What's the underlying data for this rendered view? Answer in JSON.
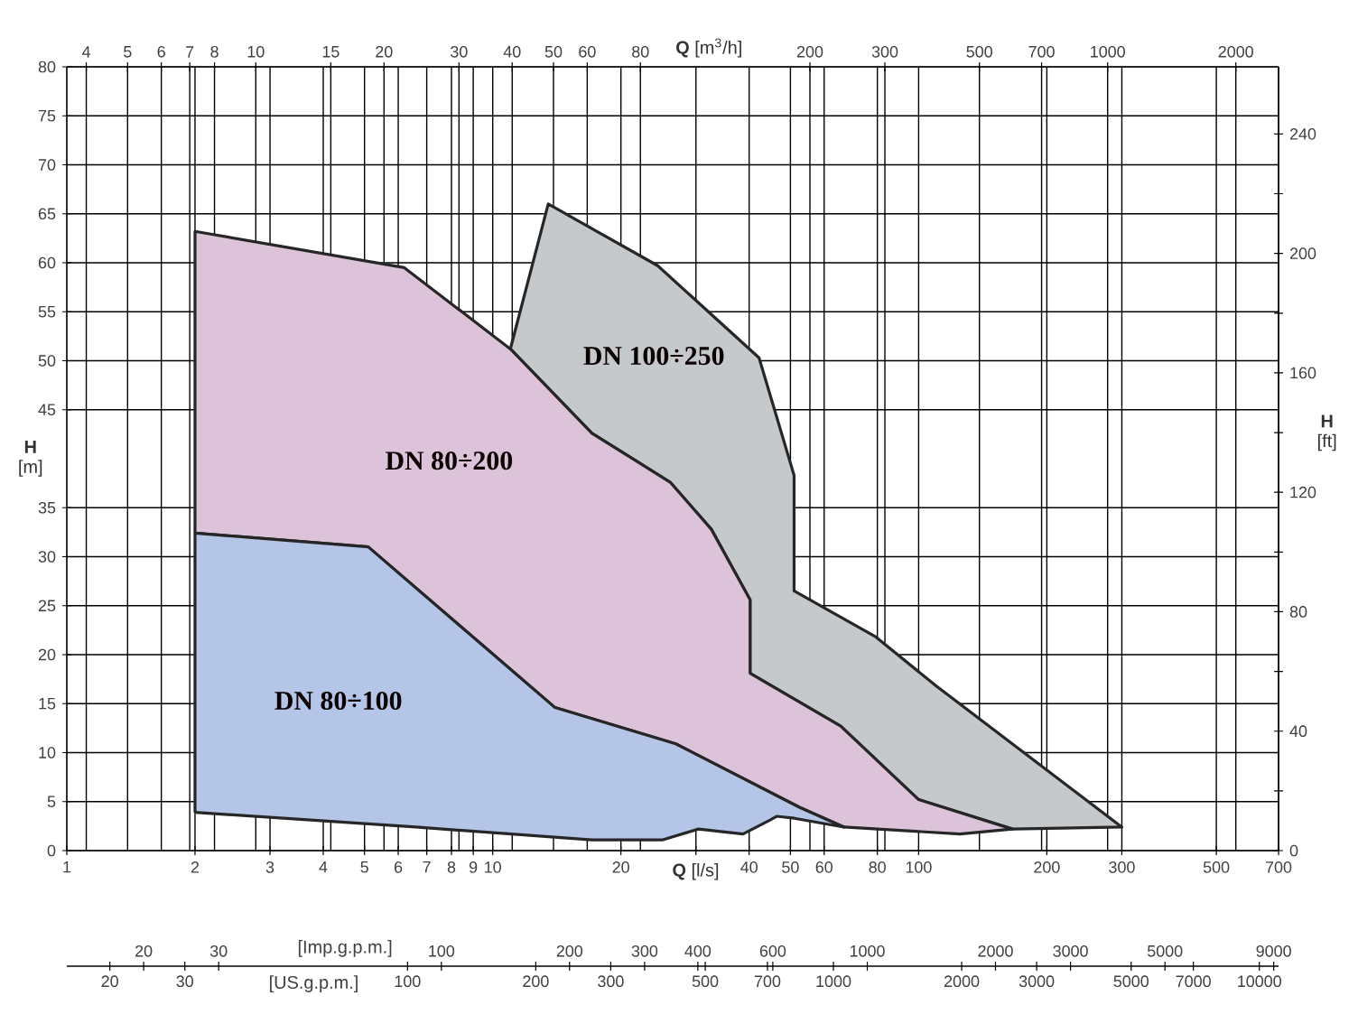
{
  "chart_data": {
    "type": "area",
    "xlabel": "**Q** [l/s]",
    "x2label": "**Q** [m$^{3}$/h]",
    "ylabel": "**H** [m]",
    "y2label": "**H** [ft]",
    "log": "x",
    "grid": true,
    "xlim": [
      1,
      700
    ],
    "xticks": [
      1,
      2,
      3,
      4,
      5,
      6,
      7,
      8,
      9,
      10,
      20,
      {
        "value": 30,
        "label": null
      },
      40,
      50,
      60,
      80,
      100,
      200,
      300,
      500,
      700
    ],
    "ylim": [
      0,
      80
    ],
    "yticks": [
      0,
      5,
      10,
      15,
      20,
      25,
      30,
      35,
      45,
      50,
      55,
      60,
      65,
      70,
      75,
      80
    ],
    "y2lim": [
      0,
      262.5
    ],
    "y2ticks": [
      0,
      40,
      80,
      120,
      160,
      200,
      240
    ],
    "annotations": [
      "4",
      "5",
      "6",
      "7",
      "8",
      "10",
      "15",
      "20",
      "30",
      "40",
      "50",
      "60",
      "80",
      "200",
      "300",
      "500",
      "700",
      "1000",
      "2000",
      "[Imp.g.p.m.]",
      "20",
      "30",
      "100",
      "200",
      "300",
      "400",
      "600",
      "1000",
      "2000",
      "3000",
      "5000",
      "9000",
      "[US.g.p.m.]",
      "20",
      "30",
      "100",
      "200",
      "300",
      "500",
      "700",
      "1000",
      "2000",
      "3000",
      "5000",
      "7000",
      "10000"
    ],
    "series": [
      {
        "name": "DN 100÷250",
        "color": "#c5c9cc",
        "x": [
          11,
          13.5,
          24.4,
          42.2,
          51,
          51,
          79.4,
          110,
          300,
          166,
          100,
          65.6,
          40.2,
          40.2,
          32.6,
          26.1,
          17.1,
          11
        ],
        "values": [
          51.2,
          66,
          59.7,
          50.3,
          38.3,
          26.5,
          21.8,
          16.8,
          2.4,
          2.2,
          5.2,
          12.7,
          18.1,
          25.6,
          32.8,
          37.6,
          42.6,
          51.2
        ]
      },
      {
        "name": "DN 80÷200",
        "color": "#dcc3da",
        "x": [
          2,
          2,
          6.2,
          11,
          17.1,
          26.1,
          32.6,
          40.2,
          40.2,
          65.6,
          100,
          166,
          125,
          66.8,
          52.6,
          26.9,
          14,
          5.1,
          2
        ],
        "values": [
          32.4,
          63.2,
          59.5,
          51.2,
          42.6,
          37.6,
          32.8,
          25.6,
          18.1,
          12.7,
          5.2,
          2.2,
          1.7,
          2.4,
          4.4,
          10.9,
          14.6,
          31,
          32.4
        ]
      },
      {
        "name": "DN 80÷100",
        "color": "#b4c5e8",
        "x": [
          2,
          2,
          5.1,
          14,
          26.9,
          52.6,
          66.8,
          51.1,
          46.4,
          44.7,
          38.7,
          30.4,
          25.1,
          17.1,
          6.6,
          2
        ],
        "values": [
          3.9,
          32.4,
          31,
          14.6,
          10.9,
          4.4,
          2.4,
          3.3,
          3.5,
          3.1,
          1.7,
          2.2,
          1.1,
          1.1,
          2.4,
          3.9
        ]
      }
    ]
  }
}
